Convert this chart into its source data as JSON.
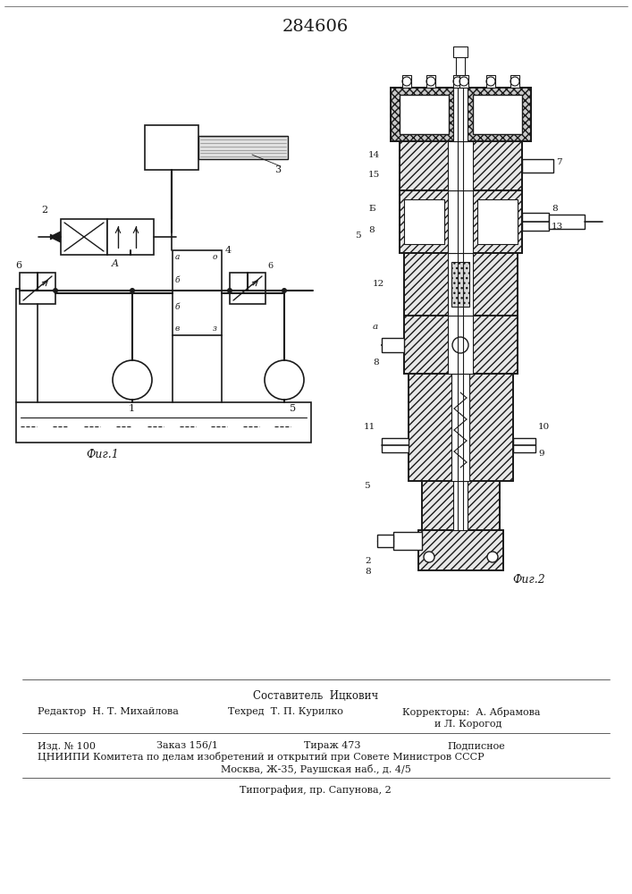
{
  "title_number": "284606",
  "fig1_caption": "Фиг.1",
  "fig2_caption": "Фиг.2",
  "footer_составитель": "Составитель  Ицкович",
  "footer_editor": "Редактор  Н. Т. Михайлова",
  "footer_techred": "Техред  Т. П. Курилко",
  "footer_correctors": "Корректоры:  А. Абрамова",
  "footer_korогод": "и Л. Корогод",
  "footer_izd": "Изд. № 100",
  "footer_zakaz": "Заказ 156/1",
  "footer_tirazh": "Тираж 473",
  "footer_podpisnoe": "Подписное",
  "footer_cniipи": "ЦНИИПИ Комитета по делам изобретений и открытий при Совете Министров СССР",
  "footer_moskva": "Москва, Ж-35, Раушская наб., д. 4/5",
  "footer_tipografiya": "Типография, пр. Сапунова, 2",
  "bg_color": "#ffffff",
  "lc": "#1a1a1a"
}
